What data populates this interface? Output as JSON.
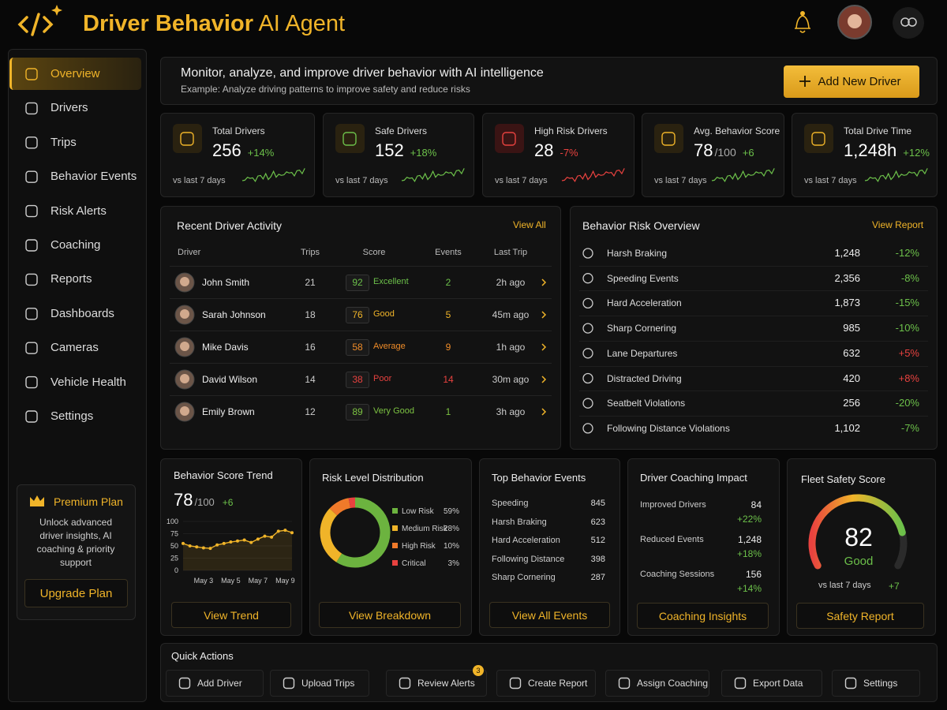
{
  "header": {
    "title_bold": "Driver Behavior",
    "title_light": "AI Agent"
  },
  "sidebar": {
    "items": [
      "Overview",
      "Drivers",
      "Trips",
      "Behavior Events",
      "Risk Alerts",
      "Coaching",
      "Reports",
      "Dashboards",
      "Cameras",
      "Vehicle Health",
      "Settings"
    ],
    "premium": {
      "title": "Premium Plan",
      "text": "Unlock advanced driver insights, AI coaching & priority support",
      "button": "Upgrade Plan"
    }
  },
  "banner": {
    "title": "Monitor, analyze, and improve driver behavior with AI intelligence",
    "subtitle": "Example: Analyze driving patterns to improve safety and reduce risks",
    "button": "Add New Driver"
  },
  "kpis": [
    {
      "label": "Total Drivers",
      "value": "256",
      "change": "+14%",
      "note": "vs last 7 days",
      "color": "#6cc04a"
    },
    {
      "label": "Safe Drivers",
      "value": "152",
      "change": "+18%",
      "note": "vs last 7 days",
      "color": "#6cc04a"
    },
    {
      "label": "High Risk Drivers",
      "value": "28",
      "change": "-7%",
      "note": "vs last 7 days",
      "color": "#e8423f"
    },
    {
      "label": "Avg. Behavior Score",
      "value": "78",
      "unit": "/100",
      "change": "+6",
      "note": "vs last 7 days",
      "color": "#6cc04a"
    },
    {
      "label": "Total Drive Time",
      "value": "1,248h",
      "change": "+12%",
      "note": "vs last 7 days",
      "color": "#6cc04a"
    }
  ],
  "activity": {
    "title": "Recent Driver Activity",
    "link": "View All",
    "columns": [
      "Driver",
      "Trips",
      "Score",
      "Events",
      "Last Trip"
    ],
    "rows": [
      {
        "name": "John Smith",
        "trips": "21",
        "score": "92",
        "rating": "Excellent",
        "events": "2",
        "last_trip": "2h ago",
        "color": "#6cc04a"
      },
      {
        "name": "Sarah Johnson",
        "trips": "18",
        "score": "76",
        "rating": "Good",
        "events": "5",
        "last_trip": "45m ago",
        "color": "#f0b429"
      },
      {
        "name": "Mike Davis",
        "trips": "16",
        "score": "58",
        "rating": "Average",
        "events": "9",
        "last_trip": "1h ago",
        "color": "#f08c28"
      },
      {
        "name": "David Wilson",
        "trips": "14",
        "score": "38",
        "rating": "Poor",
        "events": "14",
        "last_trip": "30m ago",
        "color": "#e8423f"
      },
      {
        "name": "Emily Brown",
        "trips": "12",
        "score": "89",
        "rating": "Very Good",
        "events": "1",
        "last_trip": "3h ago",
        "color": "#7cc242"
      }
    ]
  },
  "risk": {
    "title": "Behavior Risk Overview",
    "link": "View Report",
    "rows": [
      {
        "name": "Harsh Braking",
        "count": "1,248",
        "change": "-12%",
        "color": "#6cc04a"
      },
      {
        "name": "Speeding Events",
        "count": "2,356",
        "change": "-8%",
        "color": "#6cc04a"
      },
      {
        "name": "Hard Acceleration",
        "count": "1,873",
        "change": "-15%",
        "color": "#6cc04a"
      },
      {
        "name": "Sharp Cornering",
        "count": "985",
        "change": "-10%",
        "color": "#6cc04a"
      },
      {
        "name": "Lane Departures",
        "count": "632",
        "change": "+5%",
        "color": "#e8423f"
      },
      {
        "name": "Distracted Driving",
        "count": "420",
        "change": "+8%",
        "color": "#e8423f"
      },
      {
        "name": "Seatbelt Violations",
        "count": "256",
        "change": "-20%",
        "color": "#6cc04a"
      },
      {
        "name": "Following Distance Violations",
        "count": "1,102",
        "change": "-7%",
        "color": "#6cc04a"
      }
    ]
  },
  "trend": {
    "title": "Behavior Score Trend",
    "value": "78",
    "unit": "/100",
    "change": "+6",
    "button": "View Trend",
    "chart": {
      "type": "line",
      "color": "#f0b429",
      "categories": [
        null,
        null,
        null,
        "May 3",
        null,
        null,
        null,
        "May 5",
        null,
        null,
        null,
        "May 7",
        null,
        null,
        null,
        "May 9",
        null
      ],
      "values": [
        55,
        50,
        48,
        46,
        45,
        52,
        55,
        58,
        60,
        62,
        57,
        64,
        70,
        68,
        80,
        82,
        77
      ],
      "ylim": [
        0,
        100
      ],
      "yticks": [
        0,
        25,
        50,
        75,
        100
      ]
    }
  },
  "distribution": {
    "title": "Risk Level Distribution",
    "button": "View Breakdown",
    "chart": {
      "type": "donut",
      "series": [
        {
          "name": "Low Risk",
          "value": 59,
          "value_label": "59%",
          "color": "#6cb33f"
        },
        {
          "name": "Medium Risk",
          "value": 28,
          "value_label": "28%",
          "color": "#f0b429"
        },
        {
          "name": "High Risk",
          "value": 10,
          "value_label": "10%",
          "color": "#f07a2a"
        },
        {
          "name": "Critical",
          "value": 3,
          "value_label": "3%",
          "color": "#e8423f"
        }
      ]
    }
  },
  "events": {
    "title": "Top Behavior Events",
    "button": "View All Events",
    "items": [
      {
        "name": "Speeding",
        "count": "845"
      },
      {
        "name": "Harsh Braking",
        "count": "623"
      },
      {
        "name": "Hard Acceleration",
        "count": "512"
      },
      {
        "name": "Following Distance",
        "count": "398"
      },
      {
        "name": "Sharp Cornering",
        "count": "287"
      }
    ]
  },
  "coaching": {
    "title": "Driver Coaching Impact",
    "button": "Coaching Insights",
    "items": [
      {
        "label": "Improved Drivers",
        "value": "84",
        "change": "+22%"
      },
      {
        "label": "Reduced Events",
        "value": "1,248",
        "change": "+18%"
      },
      {
        "label": "Coaching Sessions",
        "value": "156",
        "change": "+14%"
      }
    ]
  },
  "safety": {
    "title": "Fleet Safety Score",
    "chart": {
      "type": "gauge",
      "value": 82,
      "range": [
        0,
        100
      ]
    },
    "rating": "Good",
    "note": "vs last 7 days",
    "change": "+7",
    "button": "Safety Report"
  },
  "quick_actions": {
    "title": "Quick Actions",
    "items": [
      {
        "label": "Add Driver"
      },
      {
        "label": "Upload Trips"
      },
      {
        "label": "Review Alerts",
        "badge": "3"
      },
      {
        "label": "Create Report"
      },
      {
        "label": "Assign Coaching"
      },
      {
        "label": "Export Data"
      },
      {
        "label": "Settings"
      }
    ]
  }
}
